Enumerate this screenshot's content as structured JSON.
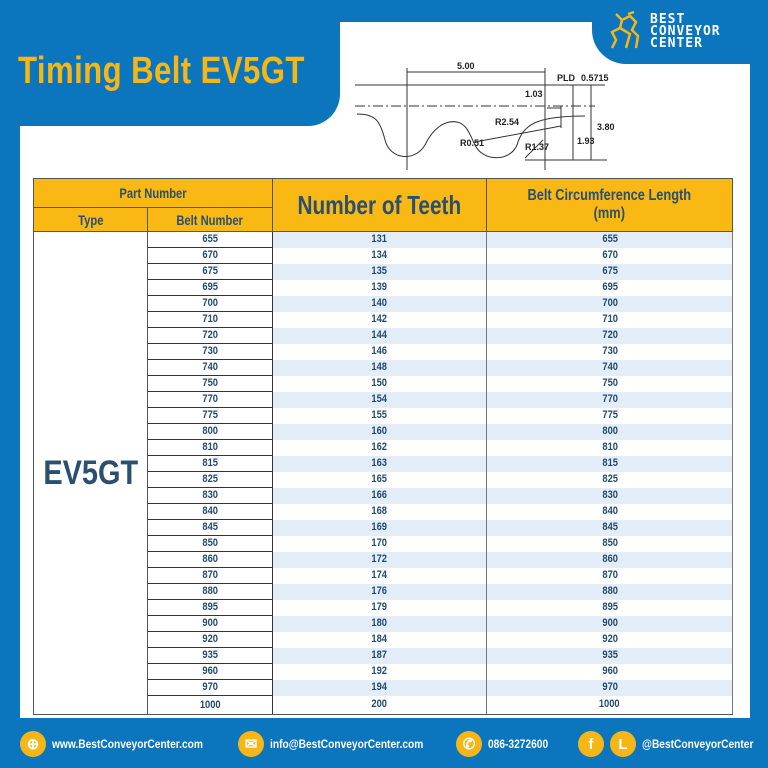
{
  "title": "Timing Belt EV5GT",
  "logo": {
    "line1": "BEST",
    "line2": "CONVEYOR",
    "line3": "CENTER"
  },
  "diagram": {
    "pitch": "5.00",
    "pld_label": "PLD",
    "pld": "0.5715",
    "d1": "1.03",
    "r1": "R2.54",
    "r2": "R0.51",
    "r3": "R1.37",
    "h1": "3.80",
    "h2": "1.93"
  },
  "table": {
    "header_part": "Part Number",
    "header_type": "Type",
    "header_belt": "Belt Number",
    "header_teeth": "Number of Teeth",
    "header_length": "Belt Circumference Length (mm)",
    "type": "EV5GT",
    "rows": [
      [
        "655",
        "131",
        "655"
      ],
      [
        "670",
        "134",
        "670"
      ],
      [
        "675",
        "135",
        "675"
      ],
      [
        "695",
        "139",
        "695"
      ],
      [
        "700",
        "140",
        "700"
      ],
      [
        "710",
        "142",
        "710"
      ],
      [
        "720",
        "144",
        "720"
      ],
      [
        "730",
        "146",
        "730"
      ],
      [
        "740",
        "148",
        "740"
      ],
      [
        "750",
        "150",
        "750"
      ],
      [
        "770",
        "154",
        "770"
      ],
      [
        "775",
        "155",
        "775"
      ],
      [
        "800",
        "160",
        "800"
      ],
      [
        "810",
        "162",
        "810"
      ],
      [
        "815",
        "163",
        "815"
      ],
      [
        "825",
        "165",
        "825"
      ],
      [
        "830",
        "166",
        "830"
      ],
      [
        "840",
        "168",
        "840"
      ],
      [
        "845",
        "169",
        "845"
      ],
      [
        "850",
        "170",
        "850"
      ],
      [
        "860",
        "172",
        "860"
      ],
      [
        "870",
        "174",
        "870"
      ],
      [
        "880",
        "176",
        "880"
      ],
      [
        "895",
        "179",
        "895"
      ],
      [
        "900",
        "180",
        "900"
      ],
      [
        "920",
        "184",
        "920"
      ],
      [
        "935",
        "187",
        "935"
      ],
      [
        "960",
        "192",
        "960"
      ],
      [
        "970",
        "194",
        "970"
      ],
      [
        "1000",
        "200",
        "1000"
      ]
    ]
  },
  "footer": {
    "website": "www.BestConveyorCenter.com",
    "email": "info@BestConveyorCenter.com",
    "phone": "086-3272600",
    "social": "@BestConveyorCenter",
    "icons": [
      "globe-icon",
      "mail-icon",
      "phone-icon",
      "facebook-icon",
      "line-icon"
    ]
  },
  "colors": {
    "blue": "#0b75bd",
    "yellow": "#f6b716",
    "header": "#f9b813",
    "text": "#234a6d"
  }
}
